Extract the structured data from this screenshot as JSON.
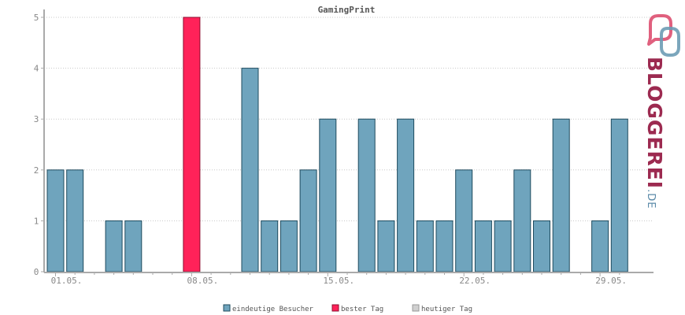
{
  "chart_data": {
    "type": "bar",
    "title": "GamingPrint",
    "xlabel": "",
    "ylabel": "",
    "ylim": [
      0,
      5
    ],
    "yticks": [
      0,
      1,
      2,
      3,
      4,
      5
    ],
    "grid": true,
    "categories": [
      "01.05.",
      "02.05.",
      "03.05.",
      "04.05.",
      "05.05.",
      "06.05.",
      "07.05.",
      "08.05.",
      "09.05.",
      "10.05.",
      "11.05.",
      "12.05.",
      "13.05.",
      "14.05.",
      "15.05.",
      "16.05.",
      "17.05.",
      "18.05.",
      "19.05.",
      "20.05.",
      "21.05.",
      "22.05.",
      "23.05.",
      "24.05.",
      "25.05.",
      "26.05.",
      "27.05.",
      "28.05.",
      "29.05.",
      "30.05."
    ],
    "x_tick_labels": [
      "01.05.",
      "08.05.",
      "15.05.",
      "22.05.",
      "29.05."
    ],
    "values": [
      2,
      2,
      0,
      1,
      1,
      0,
      0,
      5,
      0,
      0,
      4,
      1,
      1,
      2,
      3,
      0,
      3,
      1,
      3,
      1,
      1,
      2,
      1,
      1,
      2,
      1,
      3,
      0,
      1,
      3
    ],
    "best_day_index": 7,
    "colors": {
      "bar": "#6fa4bd",
      "bar_stroke": "#1f4b5e",
      "best": "#ff2259",
      "best_stroke": "#8e0f31",
      "today": "#d0d0d0",
      "grid": "#c8c8c8",
      "axis": "#aaaaaa"
    },
    "legend": {
      "placement": "bottom-center",
      "items": [
        {
          "label": "eindeutige Besucher",
          "color": "#6fa4bd",
          "stroke": "#1f4b5e"
        },
        {
          "label": "bester Tag",
          "color": "#ff2259",
          "stroke": "#8e0f31"
        },
        {
          "label": "heutiger Tag",
          "color": "#d0d0d0",
          "stroke": "#999999"
        }
      ]
    }
  },
  "logo": {
    "text": "BLOGGEREI",
    "tld": ".DE"
  }
}
